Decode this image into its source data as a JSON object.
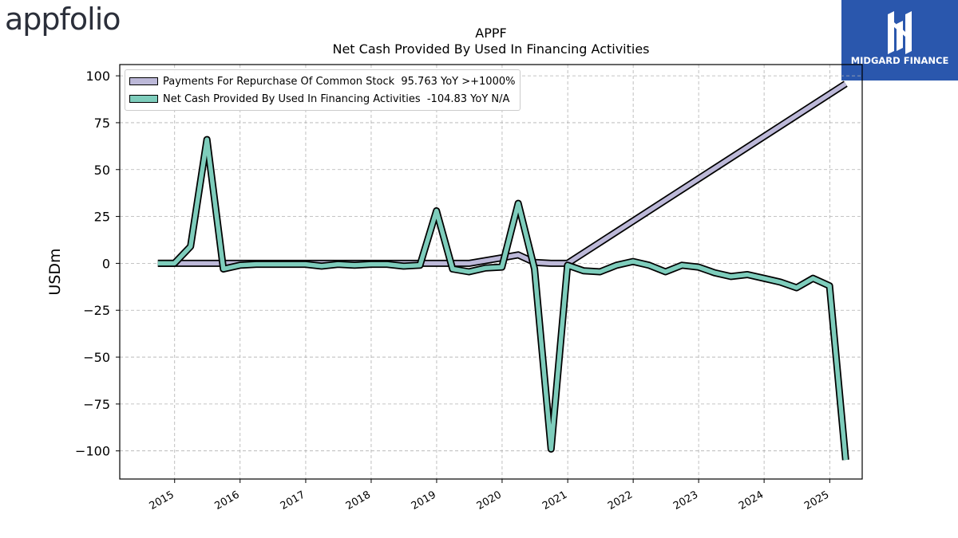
{
  "branding": {
    "left_logo_text": "appfolio",
    "right_logo_text": "MIDGARD FINANCE",
    "right_logo_bg": "#2a57ad"
  },
  "chart_data": {
    "type": "line",
    "title": "APPF",
    "subtitle": "Net Cash Provided By Used In Financing Activities",
    "ylabel": "USDm",
    "xlabel": "",
    "ylim": [
      -115,
      106
    ],
    "xlim": [
      "2014-03-01",
      "2025-07-01"
    ],
    "yticks": [
      100,
      75,
      50,
      25,
      0,
      -25,
      -50,
      -75,
      -100
    ],
    "ytick_labels": [
      "100",
      "75",
      "50",
      "25",
      "0",
      "−25",
      "−50",
      "−75",
      "−100"
    ],
    "xticks": [
      "2015-01-01",
      "2016-01-01",
      "2017-01-01",
      "2018-01-01",
      "2019-01-01",
      "2020-01-01",
      "2021-01-01",
      "2022-01-01",
      "2023-01-01",
      "2024-01-01",
      "2025-01-01"
    ],
    "xtick_labels": [
      "2015",
      "2016",
      "2017",
      "2018",
      "2019",
      "2020",
      "2021",
      "2022",
      "2023",
      "2024",
      "2025"
    ],
    "grid": true,
    "legend_position": "top-left",
    "series": [
      {
        "name": "Payments For Repurchase Of Common Stock",
        "legend_label": "Payments For Repurchase Of Common Stock  95.763 YoY >+1000%",
        "color": "#bcb8d8",
        "points": [
          [
            "2014-09-30",
            0
          ],
          [
            "2014-12-31",
            0
          ],
          [
            "2019-03-31",
            0
          ],
          [
            "2019-06-30",
            0
          ],
          [
            "2019-09-30",
            1.5
          ],
          [
            "2019-12-31",
            3
          ],
          [
            "2020-03-31",
            4.5
          ],
          [
            "2020-06-30",
            0.5
          ],
          [
            "2020-09-30",
            0
          ],
          [
            "2020-12-31",
            0
          ],
          [
            "2025-03-31",
            95.763
          ]
        ]
      },
      {
        "name": "Net Cash Provided By Used In Financing Activities",
        "legend_label": "Net Cash Provided By Used In Financing Activities  -104.83 YoY N/A",
        "color": "#7ecdbc",
        "points": [
          [
            "2014-09-30",
            0
          ],
          [
            "2014-12-31",
            0
          ],
          [
            "2015-03-31",
            9
          ],
          [
            "2015-06-30",
            66
          ],
          [
            "2015-09-30",
            -3
          ],
          [
            "2015-12-31",
            -1
          ],
          [
            "2016-03-31",
            -0.5
          ],
          [
            "2016-06-30",
            -0.5
          ],
          [
            "2016-09-30",
            -0.5
          ],
          [
            "2016-12-31",
            -0.5
          ],
          [
            "2017-03-31",
            -1.5
          ],
          [
            "2017-06-30",
            -0.5
          ],
          [
            "2017-09-30",
            -1
          ],
          [
            "2017-12-31",
            -0.5
          ],
          [
            "2018-03-31",
            -0.5
          ],
          [
            "2018-06-30",
            -1.5
          ],
          [
            "2018-09-30",
            -1
          ],
          [
            "2018-12-31",
            28
          ],
          [
            "2019-03-31",
            -3
          ],
          [
            "2019-06-30",
            -4.5
          ],
          [
            "2019-09-30",
            -2.5
          ],
          [
            "2019-12-31",
            -2
          ],
          [
            "2020-03-31",
            32
          ],
          [
            "2020-06-30",
            -3
          ],
          [
            "2020-09-30",
            -99
          ],
          [
            "2020-12-31",
            -1
          ],
          [
            "2021-03-31",
            -4
          ],
          [
            "2021-06-30",
            -4.5
          ],
          [
            "2021-09-30",
            -1
          ],
          [
            "2021-12-31",
            1
          ],
          [
            "2022-03-31",
            -1
          ],
          [
            "2022-06-30",
            -4.5
          ],
          [
            "2022-09-30",
            -1
          ],
          [
            "2022-12-31",
            -2
          ],
          [
            "2023-03-31",
            -5
          ],
          [
            "2023-06-30",
            -7
          ],
          [
            "2023-09-30",
            -6
          ],
          [
            "2023-12-31",
            -8
          ],
          [
            "2024-03-31",
            -10
          ],
          [
            "2024-06-30",
            -13
          ],
          [
            "2024-09-30",
            -8
          ],
          [
            "2024-12-31",
            -12
          ],
          [
            "2025-03-31",
            -104.83
          ]
        ]
      }
    ]
  }
}
